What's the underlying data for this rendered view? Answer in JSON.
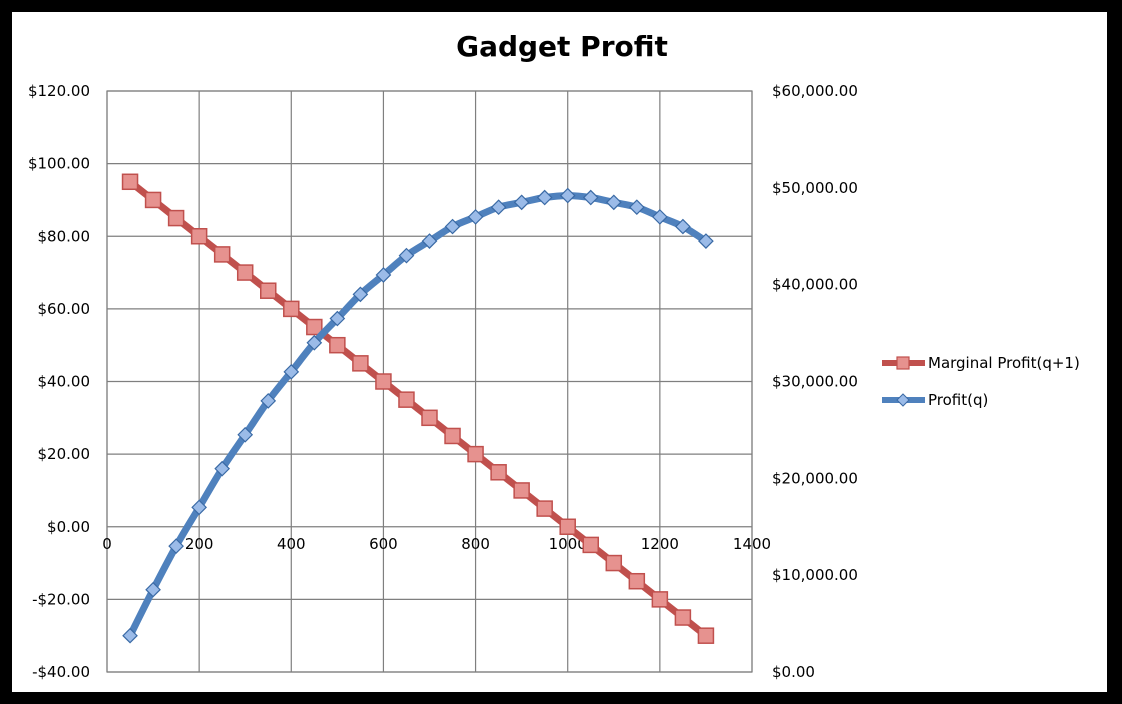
{
  "chart_data": {
    "type": "line",
    "title": "Gadget Profit",
    "xlabel": "",
    "ylabel": "",
    "y2label": "",
    "xlim": [
      0,
      1400
    ],
    "x_ticks": [
      0,
      200,
      400,
      600,
      800,
      1000,
      1200,
      1400
    ],
    "x_tick_labels": [
      "0",
      "200",
      "400",
      "600",
      "800",
      "1000",
      "1200",
      "1400"
    ],
    "ylim": [
      -40,
      120
    ],
    "y_ticks": [
      -40,
      -20,
      0,
      20,
      40,
      60,
      80,
      100,
      120
    ],
    "y_tick_labels": [
      "-$40.00",
      "-$20.00",
      "$0.00",
      "$20.00",
      "$40.00",
      "$60.00",
      "$80.00",
      "$100.00",
      "$120.00"
    ],
    "y2lim": [
      0,
      60000
    ],
    "y2_ticks": [
      0,
      10000,
      20000,
      30000,
      40000,
      50000,
      60000
    ],
    "y2_tick_labels": [
      "$0.00",
      "$10,000.00",
      "$20,000.00",
      "$30,000.00",
      "$40,000.00",
      "$50,000.00",
      "$60,000.00"
    ],
    "grid": true,
    "legend_position": "right",
    "series": [
      {
        "name": "Marginal Profit(q+1)",
        "axis": "left",
        "color": "#c0504d",
        "fill": "#e6928f",
        "marker": "square",
        "x": [
          50,
          100,
          150,
          200,
          250,
          300,
          350,
          400,
          450,
          500,
          550,
          600,
          650,
          700,
          750,
          800,
          850,
          900,
          950,
          1000,
          1050,
          1100,
          1150,
          1200,
          1250,
          1300
        ],
        "values": [
          95,
          90,
          85,
          80,
          75,
          70,
          65,
          60,
          55,
          50,
          45,
          40,
          35,
          30,
          25,
          20,
          15,
          10,
          5,
          0,
          -5,
          -10,
          -15,
          -20,
          -25,
          -30
        ]
      },
      {
        "name": "Profit(q)",
        "axis": "right",
        "color": "#4f81bd",
        "fill": "#9bbbe8",
        "marker": "diamond",
        "x": [
          50,
          100,
          150,
          200,
          250,
          300,
          350,
          400,
          450,
          500,
          550,
          600,
          650,
          700,
          750,
          800,
          850,
          900,
          950,
          1000,
          1050,
          1100,
          1150,
          1200,
          1250,
          1300
        ],
        "values": [
          3750,
          8500,
          13000,
          17000,
          21000,
          24500,
          28000,
          31000,
          34000,
          36500,
          39000,
          41000,
          43000,
          44500,
          46000,
          47000,
          48000,
          48500,
          49000,
          49200,
          49000,
          48500,
          48000,
          47000,
          46000,
          44500
        ]
      }
    ]
  }
}
